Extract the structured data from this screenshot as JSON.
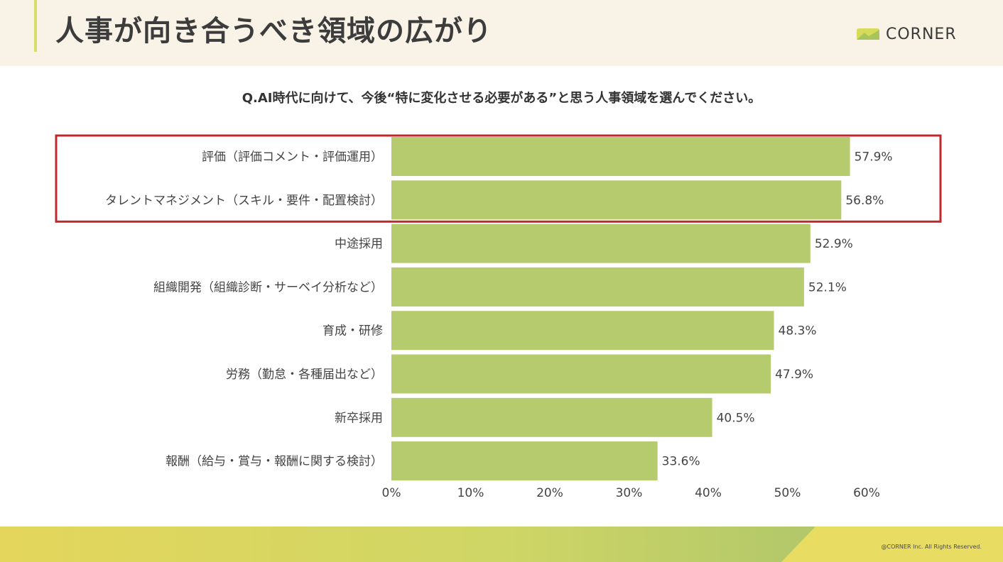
{
  "header": {
    "title": "人事が向き合うべき領域の広がり",
    "brand": "CORNER"
  },
  "question": "Q.AI時代に向けて、今後“特に変化させる必要がある”と思う人事領域を選んでください。",
  "chart_data": {
    "type": "bar",
    "orientation": "horizontal",
    "categories": [
      "評価（評価コメント・評価運用）",
      "タレントマネジメント（スキル・要件・配置検討）",
      "中途採用",
      "組織開発（組織診断・サーベイ分析など）",
      "育成・研修",
      "労務（勤怠・各種届出など）",
      "新卒採用",
      "報酬（給与・賞与・報酬に関する検討）"
    ],
    "values": [
      57.9,
      56.8,
      52.9,
      52.1,
      48.3,
      47.9,
      40.5,
      33.6
    ],
    "data_labels": [
      "57.9%",
      "56.8%",
      "52.9%",
      "52.1%",
      "48.3%",
      "47.9%",
      "40.5%",
      "33.6%"
    ],
    "xlim": [
      0,
      60
    ],
    "x_ticks": [
      0,
      10,
      20,
      30,
      40,
      50,
      60
    ],
    "x_tick_labels": [
      "0%",
      "10%",
      "20%",
      "30%",
      "40%",
      "50%",
      "60%"
    ],
    "highlighted_categories": [
      0,
      1
    ],
    "grid": false,
    "bar_color": "#b5cb6e",
    "highlight_color": "#c0282d"
  },
  "footer": {
    "copyright": "@CORNER Inc. All Rights Reserved."
  }
}
